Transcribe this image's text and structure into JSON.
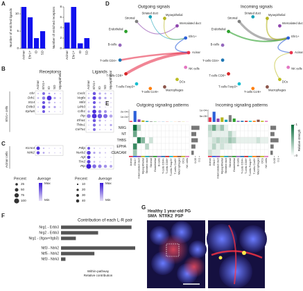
{
  "panel_labels": [
    "A",
    "B",
    "C",
    "D",
    "E",
    "F",
    "G"
  ],
  "chart_data": [
    {
      "type": "bar",
      "ylabel": "Number of enriched ligands",
      "categories": [
        "Acinar",
        "Ehr1+",
        "ID",
        "SD"
      ],
      "values": [
        12,
        9,
        3,
        5
      ],
      "color": "#1111ee",
      "ylim": [
        0,
        12
      ],
      "yticks": [
        0,
        5,
        10
      ]
    },
    {
      "type": "bar",
      "ylabel": "Number of enriched receptors",
      "categories": [
        "Acinar",
        "Ehr1+",
        "ID",
        "SD"
      ],
      "values": [
        5,
        8,
        1,
        2
      ],
      "color": "#1111ee",
      "ylim": [
        0,
        8
      ],
      "yticks": [
        0,
        2,
        4,
        6,
        8
      ]
    },
    {
      "type": "hbar",
      "title": "Contribution of each L-R pair",
      "xlabel": [
        "Within-pathway",
        "Relative contribution"
      ],
      "categories": [
        "Nrg1 - Erbb3",
        "Nrg2 - Erbb3",
        "Nrg1 - (Itgav+Itgb3)",
        "Ntf3 - Ntrk2",
        "Ntf5 - Ntrk2",
        "Ntf3 - Ntrk3"
      ],
      "values": [
        0.95,
        0.5,
        0.2,
        1,
        0.45,
        0.06
      ],
      "color": "#555555",
      "xlim": [
        0,
        1
      ]
    }
  ],
  "dotplot": {
    "headers": [
      "Receptors",
      "Ligands"
    ],
    "columns": [
      "Acinar",
      "Ehr1+",
      "ID",
      "SD",
      "Myoepithelial"
    ],
    "groups": [
      {
        "label": "Ehr1+ cells",
        "receptors": {
          "rows": [
            "Ghr",
            "Ddr1",
            "St14",
            "Erbb3",
            "Epha5"
          ],
          "percent": [
            [
              10,
              30,
              15,
              10,
              5
            ],
            [
              15,
              40,
              90,
              20,
              10
            ],
            [
              5,
              35,
              20,
              10,
              5
            ],
            [
              10,
              45,
              15,
              20,
              5
            ],
            [
              5,
              30,
              10,
              5,
              5
            ]
          ],
          "average": [
            [
              0.1,
              0.6,
              0.3,
              0.2,
              0.1
            ],
            [
              0.2,
              0.5,
              0.9,
              0.3,
              0.1
            ],
            [
              0.1,
              0.7,
              0.3,
              0.2,
              0.1
            ],
            [
              0.2,
              0.8,
              0.3,
              0.3,
              0.1
            ],
            [
              0.1,
              0.7,
              0.2,
              0.1,
              0.1
            ]
          ]
        },
        "ligands": {
          "rows": [
            "Cxcl1",
            "Vegfa",
            "Mif4",
            "Lilrb3",
            "Cdh1",
            "Ptp",
            "Efna1",
            "Thbs1",
            "Col7a1"
          ],
          "percent": [
            [
              10,
              40,
              20,
              15,
              10
            ],
            [
              15,
              50,
              30,
              20,
              10
            ],
            [
              10,
              35,
              15,
              10,
              5
            ],
            [
              5,
              30,
              10,
              5,
              5
            ],
            [
              20,
              60,
              40,
              30,
              10
            ],
            [
              60,
              90,
              80,
              70,
              40
            ],
            [
              10,
              40,
              20,
              10,
              5
            ],
            [
              5,
              35,
              15,
              10,
              20
            ],
            [
              5,
              30,
              10,
              5,
              10
            ]
          ],
          "average": [
            [
              0.1,
              0.7,
              0.3,
              0.2,
              0.1
            ],
            [
              0.2,
              0.8,
              0.4,
              0.3,
              0.1
            ],
            [
              0.1,
              0.7,
              0.2,
              0.1,
              0.1
            ],
            [
              0.1,
              0.6,
              0.2,
              0.1,
              0.1
            ],
            [
              0.3,
              0.9,
              0.5,
              0.4,
              0.1
            ],
            [
              0.5,
              0.9,
              0.7,
              0.6,
              0.3
            ],
            [
              0.1,
              0.7,
              0.3,
              0.1,
              0.1
            ],
            [
              0.1,
              0.6,
              0.2,
              0.1,
              0.3
            ],
            [
              0.1,
              0.6,
              0.1,
              0.1,
              0.2
            ]
          ]
        }
      },
      {
        "label": "Acinar cells",
        "receptors": {
          "rows": [
            "Kcnn4",
            "Ntrk2"
          ],
          "percent": [
            [
              50,
              10,
              5,
              5,
              5
            ],
            [
              40,
              15,
              10,
              5,
              5
            ]
          ],
          "average": [
            [
              0.9,
              0.2,
              0.1,
              0.1,
              0.1
            ],
            [
              0.8,
              0.3,
              0.1,
              0.1,
              0.1
            ]
          ]
        },
        "ligands": {
          "rows": [
            "Pdtp",
            "Nucb2",
            "Agt",
            "Tcn2",
            "Ptp"
          ],
          "percent": [
            [
              30,
              10,
              5,
              5,
              5
            ],
            [
              60,
              20,
              15,
              10,
              5
            ],
            [
              45,
              10,
              5,
              5,
              5
            ],
            [
              50,
              15,
              10,
              5,
              5
            ],
            [
              95,
              60,
              50,
              40,
              30
            ]
          ],
          "average": [
            [
              0.7,
              0.1,
              0.1,
              0.1,
              0.1
            ],
            [
              0.8,
              0.3,
              0.2,
              0.1,
              0.1
            ],
            [
              0.9,
              0.1,
              0.1,
              0.1,
              0.1
            ],
            [
              0.8,
              0.2,
              0.1,
              0.1,
              0.1
            ],
            [
              1,
              0.6,
              0.5,
              0.4,
              0.3
            ]
          ]
        }
      }
    ],
    "legends": [
      {
        "title": "Percent",
        "values": [
          25,
          50,
          75,
          100
        ],
        "color_title": "Average",
        "color_labels": [
          "Max",
          "Min"
        ]
      },
      {
        "title": "Percent",
        "values": [
          10,
          20,
          30,
          40
        ],
        "color_title": "Average",
        "color_labels": [
          "Max",
          "Min"
        ]
      }
    ]
  },
  "network": {
    "nodes": [
      {
        "name": "Acinar",
        "color": "#e8344e"
      },
      {
        "name": "Ehr1+",
        "color": "#2b5fd9"
      },
      {
        "name": "Intercalated duct",
        "color": "#8e44ad"
      },
      {
        "name": "Myoepithelial",
        "color": "#b5b520"
      },
      {
        "name": "Striated duct",
        "color": "#17a2b8"
      },
      {
        "name": "Stromal",
        "color": "#7f7f7f"
      },
      {
        "name": "Endothelial",
        "color": "#2ca02c"
      },
      {
        "name": "B-cells",
        "color": "#9467bd"
      },
      {
        "name": "T-cells CD4+",
        "color": "#1f77b4"
      },
      {
        "name": "T-cells CD8+",
        "color": "#d62728"
      },
      {
        "name": "T-cells Foxp3+",
        "color": "#17becf"
      },
      {
        "name": "T-cells Ccr8+",
        "color": "#ff7f0e"
      },
      {
        "name": "Macrophages",
        "color": "#8c564b"
      },
      {
        "name": "DCs",
        "color": "#bcbd22"
      },
      {
        "name": "NK cells",
        "color": "#e377c2"
      }
    ],
    "graphs": [
      {
        "title": "Outgoing signals",
        "edges": [
          {
            "source": 0,
            "target": 9,
            "weight": 1
          },
          {
            "source": 0,
            "target": 8,
            "weight": 0.6
          },
          {
            "source": 1,
            "target": 0,
            "weight": 0.3
          },
          {
            "source": 2,
            "target": 5,
            "weight": 0.2
          },
          {
            "source": 3,
            "target": 1,
            "weight": 0.2
          },
          {
            "source": 4,
            "target": 1,
            "weight": 0.15
          }
        ]
      },
      {
        "title": "Incoming signals",
        "edges": [
          {
            "source": 5,
            "target": 1,
            "weight": 0.8
          },
          {
            "source": 6,
            "target": 1,
            "weight": 0.5
          },
          {
            "source": 3,
            "target": 1,
            "weight": 0.4
          },
          {
            "source": 1,
            "target": 0,
            "weight": 0.3
          },
          {
            "source": 13,
            "target": 0,
            "weight": 0.2
          }
        ]
      }
    ]
  },
  "heatmap": {
    "rows": [
      "NRG",
      "NT",
      "THBS",
      "EPHA",
      "CEACAM"
    ],
    "colorbar": {
      "title": "Relative strength",
      "clim": [
        0,
        1
      ],
      "ticks": [
        0,
        1
      ]
    },
    "panels": [
      {
        "title": "Outgoing signaling patterns",
        "matrix": [
          [
            0,
            1,
            0.3,
            0,
            0,
            0,
            0,
            0,
            0,
            0,
            0,
            0,
            0,
            0,
            0
          ],
          [
            0,
            0.6,
            0,
            0,
            0,
            0,
            0,
            0,
            0,
            0,
            0,
            0,
            0,
            0,
            0
          ],
          [
            0,
            0,
            0.9,
            0.5,
            0,
            0.2,
            0,
            0,
            0,
            0,
            0,
            0,
            0,
            0,
            0
          ],
          [
            0,
            0.8,
            0,
            0,
            0.3,
            0,
            0,
            0,
            0,
            0,
            0,
            0,
            0,
            0,
            0
          ],
          [
            0,
            0.4,
            0,
            0,
            0,
            0,
            0,
            0,
            0,
            0,
            0,
            0,
            0,
            0,
            0
          ]
        ],
        "top_values": [
          2e-05,
          0.00022,
          5e-05,
          3e-05,
          2e-05,
          1e-05,
          5e-06,
          3e-06,
          3e-06,
          3e-06,
          2e-06,
          2e-06,
          4e-06,
          3e-06,
          2e-06
        ],
        "top_ylim": [
          0,
          0.00025
        ],
        "top_yticks": [
          {
            "value": 0.0001,
            "label": "1e-04"
          },
          {
            "value": 0.0002,
            "label": "2e-04"
          }
        ],
        "side_values": [
          0.1,
          0.06,
          0.08,
          0.05,
          0.03
        ],
        "side_xlim": [
          0,
          0.12
        ],
        "side_xticks": [
          0.05,
          0.1
        ]
      },
      {
        "title": "Incoming signaling patterns",
        "matrix": [
          [
            0.3,
            0.6,
            0.2,
            0.4,
            0.1,
            0,
            0,
            0,
            0,
            0,
            0,
            0,
            0,
            0,
            0
          ],
          [
            0.2,
            0.1,
            0.1,
            0.1,
            0.1,
            0.3,
            0.1,
            0,
            0,
            0,
            0,
            0,
            0,
            0,
            0
          ],
          [
            0.1,
            0.2,
            0.3,
            0.2,
            0.2,
            0.4,
            0.3,
            0.1,
            0.1,
            0.1,
            0.1,
            0.1,
            0.2,
            0.1,
            0.1
          ],
          [
            0.1,
            0.3,
            0.1,
            0.2,
            0.1,
            0.1,
            0,
            0,
            0,
            0,
            0,
            0,
            0,
            0,
            0
          ],
          [
            0.2,
            0.1,
            0.1,
            0,
            0,
            0,
            0,
            0,
            0,
            0,
            0,
            0,
            0,
            0,
            0
          ]
        ],
        "top_values": [
          4e-05,
          9e-05,
          3e-05,
          4e-05,
          2e-05,
          6e-05,
          3e-05,
          1e-05,
          1e-05,
          1e-05,
          1e-05,
          1e-05,
          2e-05,
          1e-05,
          1e-05
        ],
        "top_ylim": [
          0,
          0.00011
        ],
        "top_yticks": [
          {
            "value": 5e-05,
            "label": "5e-05"
          },
          {
            "value": 0.0001,
            "label": "1e-04"
          }
        ],
        "side_values": [
          0.07,
          0.05,
          0.1,
          0.04,
          0.03
        ],
        "side_xlim": [
          0,
          0.12
        ],
        "side_xticks": [
          0.05,
          0.1
        ]
      }
    ]
  },
  "micrograph": {
    "title": "Healthy 1 year-old PG",
    "channels": [
      {
        "name": "SMA",
        "color": "#ff2a2a"
      },
      {
        "name": "NTRK2",
        "color": "#33dd33"
      },
      {
        "name": "PSP",
        "color": "#4a5cff"
      }
    ]
  }
}
